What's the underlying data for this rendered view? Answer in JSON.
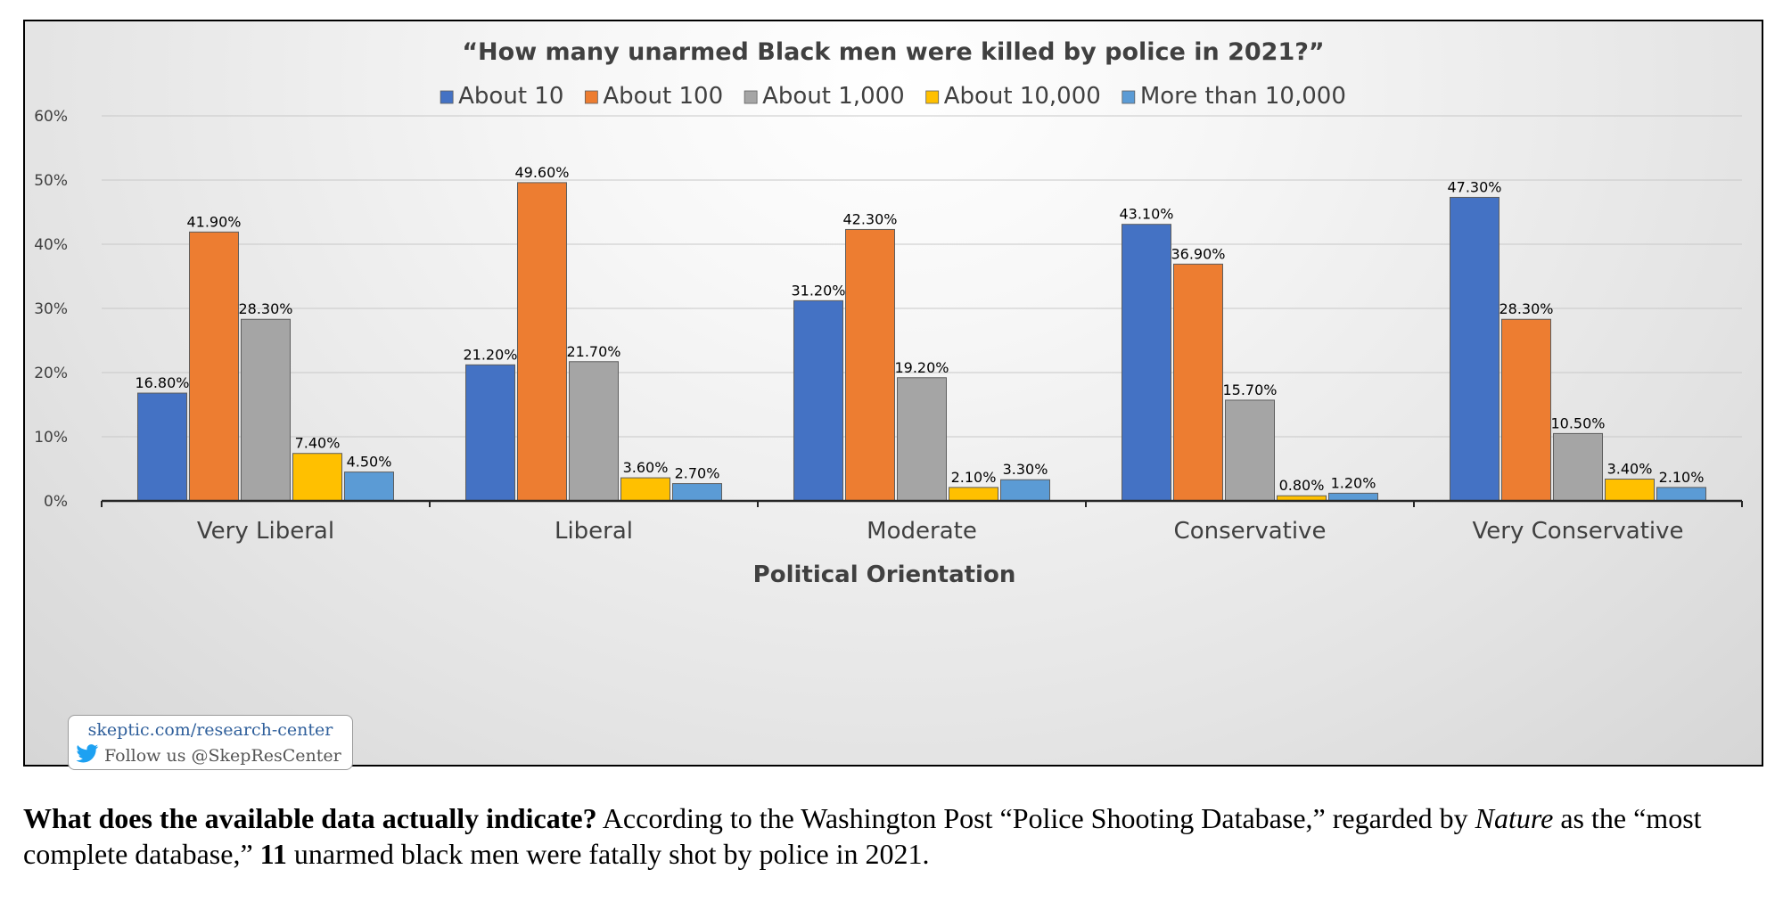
{
  "chart_data": {
    "type": "bar",
    "title": "“How many unarmed Black men were killed by police in 2021?”",
    "xlabel": "Political Orientation",
    "ylabel": "",
    "ylim": [
      0,
      60
    ],
    "yticks": [
      "0%",
      "10%",
      "20%",
      "30%",
      "40%",
      "50%",
      "60%"
    ],
    "legend_position": "top-center",
    "grid": true,
    "categories": [
      "Very Liberal",
      "Liberal",
      "Moderate",
      "Conservative",
      "Very Conservative"
    ],
    "series": [
      {
        "name": "About 10",
        "color": "#4472c4",
        "values": [
          16.8,
          21.2,
          31.2,
          43.1,
          47.3
        ],
        "labels": [
          "16.80%",
          "21.20%",
          "31.20%",
          "43.10%",
          "47.30%"
        ]
      },
      {
        "name": "About 100",
        "color": "#ed7d31",
        "values": [
          41.9,
          49.6,
          42.3,
          36.9,
          28.3
        ],
        "labels": [
          "41.90%",
          "49.60%",
          "42.30%",
          "36.90%",
          "28.30%"
        ]
      },
      {
        "name": "About 1,000",
        "color": "#a5a5a5",
        "values": [
          28.3,
          21.7,
          19.2,
          15.7,
          10.5
        ],
        "labels": [
          "28.30%",
          "21.70%",
          "19.20%",
          "15.70%",
          "10.50%"
        ]
      },
      {
        "name": "About 10,000",
        "color": "#ffc000",
        "values": [
          7.4,
          3.6,
          2.1,
          0.8,
          3.4
        ],
        "labels": [
          "7.40%",
          "3.60%",
          "2.10%",
          "0.80%",
          "3.40%"
        ]
      },
      {
        "name": "More than 10,000",
        "color": "#5b9bd5",
        "values": [
          4.5,
          2.7,
          3.3,
          1.2,
          2.1
        ],
        "labels": [
          "4.50%",
          "2.70%",
          "3.30%",
          "1.20%",
          "2.10%"
        ]
      }
    ]
  },
  "watermark": {
    "url": "skeptic.com/research-center",
    "follow": "Follow us @SkepResCenter",
    "icon": "twitter-bird-icon"
  },
  "caption": {
    "lead_bold": "What does the available data actually indicate?",
    "part1": " According to the Washington Post “Police Shooting Database,” regarded by ",
    "italic": "Nature",
    "part2": " as the “most complete database,” ",
    "number_bold": "11",
    "part3": " unarmed black men were fatally shot by police in 2021."
  }
}
